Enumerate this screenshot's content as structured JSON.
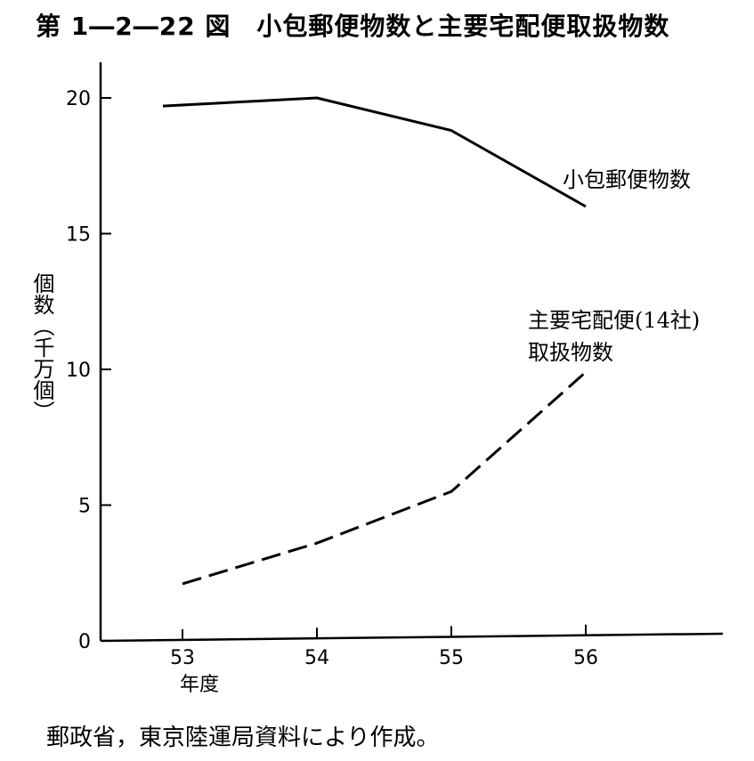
{
  "title": "第 1―2―22 図　小包郵便物数と主要宅配便取扱物数",
  "footer": "郵政省，東京陸運局資料により作成。",
  "chart_data": {
    "type": "line",
    "ylabel": "個数（千万個）",
    "xlabel": "年度",
    "x": [
      53,
      54,
      55,
      56
    ],
    "x_tick_labels": [
      "53",
      "54",
      "55",
      "56"
    ],
    "y_ticks": [
      0,
      5,
      10,
      15,
      20
    ],
    "xlim": [
      52.4,
      57.0
    ],
    "ylim": [
      0,
      21
    ],
    "grid": false,
    "legend": "inline labels near line ends",
    "series": [
      {
        "name": "小包郵便物数",
        "style": "solid",
        "values": [
          19.7,
          20.0,
          18.8,
          16.0
        ],
        "label_lines": [
          "小包郵便物数"
        ]
      },
      {
        "name": "主要宅配便(14社) 取扱物数",
        "style": "dashed",
        "values": [
          2.1,
          3.6,
          5.5,
          9.9
        ],
        "label_lines": [
          "主要宅配便(14社)",
          "取扱物数"
        ]
      }
    ]
  }
}
